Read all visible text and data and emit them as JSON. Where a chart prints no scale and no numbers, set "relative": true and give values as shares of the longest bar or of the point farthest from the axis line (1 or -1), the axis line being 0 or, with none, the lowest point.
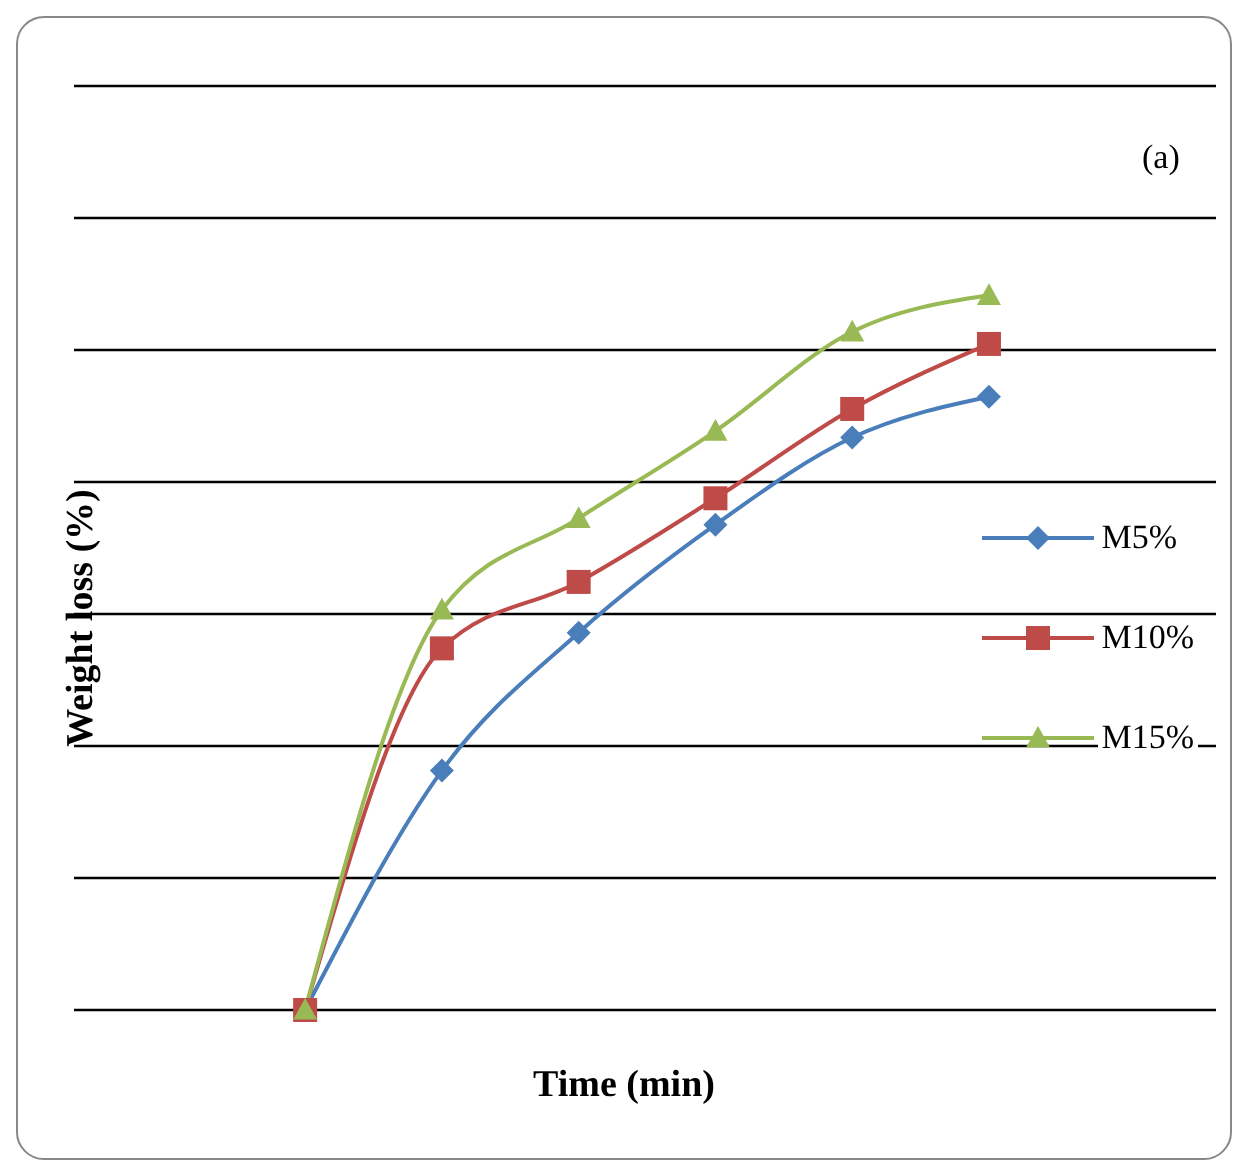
{
  "chart_data": {
    "type": "line",
    "relative": true,
    "xlabel": "Time (min)",
    "ylabel": "Weight loss (%)",
    "annotations": [
      "(a)"
    ],
    "categories": [
      null,
      null,
      null,
      null,
      null,
      null
    ],
    "grid": "y",
    "legend": "right",
    "series": [
      {
        "name": "M5%",
        "color": "#4a7ebb",
        "marker": "diamond",
        "values": [
          0,
          0.335,
          0.528,
          0.679,
          0.801,
          0.858
        ]
      },
      {
        "name": "M10%",
        "color": "#be4b48",
        "marker": "square",
        "values": [
          0,
          0.506,
          0.599,
          0.716,
          0.841,
          0.932
        ]
      },
      {
        "name": "M15%",
        "color": "#98b954",
        "marker": "triangle",
        "values": [
          0,
          0.56,
          0.688,
          0.81,
          0.949,
          1
        ]
      }
    ]
  }
}
